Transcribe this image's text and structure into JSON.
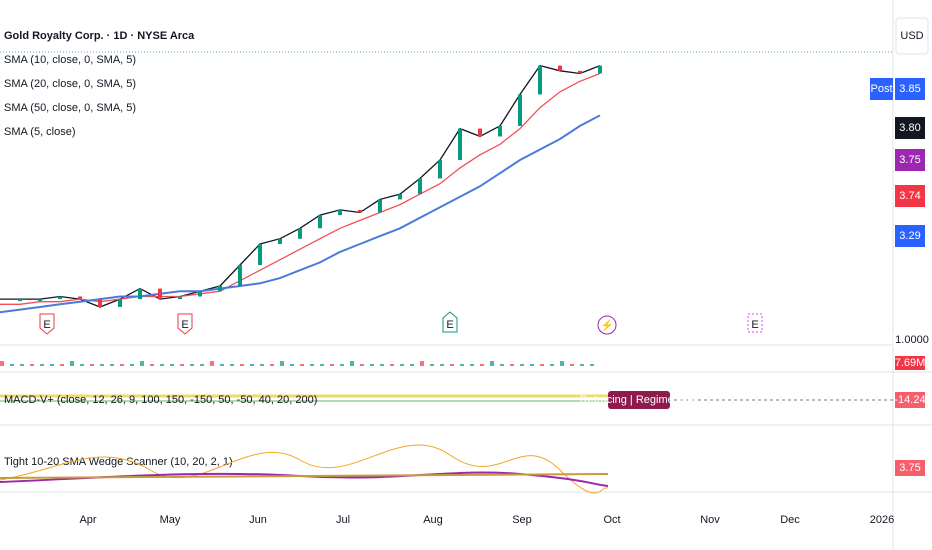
{
  "header": {
    "title": "Gold Royalty Corp. · 1D · NYSE Arca",
    "currency": "USD"
  },
  "legend": [
    "SMA (10, close, 0, SMA, 5)",
    "SMA (20, close, 0, SMA, 5)",
    "SMA (50, close, 0, SMA, 5)",
    "SMA (5, close)"
  ],
  "price_chart": {
    "ylim": [
      2.875,
      4.19
    ],
    "series": [
      {
        "name": "SMA (5, close)",
        "color": "#131722",
        "values": [
          3.05,
          3.05,
          3.05,
          3.06,
          3.05,
          3.02,
          3.05,
          3.09,
          3.05,
          3.06,
          3.08,
          3.1,
          3.18,
          3.26,
          3.28,
          3.32,
          3.37,
          3.39,
          3.38,
          3.43,
          3.45,
          3.51,
          3.58,
          3.7,
          3.67,
          3.71,
          3.83,
          3.94,
          3.92,
          3.91,
          3.94
        ]
      },
      {
        "name": "SMA (20, close, 0, SMA, 5)",
        "color": "#f0505a",
        "values": [
          3.03,
          3.03,
          3.04,
          3.04,
          3.05,
          3.04,
          3.05,
          3.06,
          3.06,
          3.06,
          3.07,
          3.08,
          3.12,
          3.16,
          3.2,
          3.24,
          3.28,
          3.32,
          3.35,
          3.38,
          3.41,
          3.45,
          3.49,
          3.55,
          3.6,
          3.64,
          3.7,
          3.78,
          3.84,
          3.88,
          3.91
        ]
      },
      {
        "name": "SMA (50, close, 0, SMA, 5)",
        "color": "#4a7bdc",
        "values": [
          3.0,
          3.01,
          3.02,
          3.03,
          3.04,
          3.05,
          3.06,
          3.06,
          3.07,
          3.08,
          3.08,
          3.09,
          3.1,
          3.11,
          3.13,
          3.16,
          3.19,
          3.23,
          3.26,
          3.29,
          3.32,
          3.36,
          3.4,
          3.44,
          3.48,
          3.53,
          3.58,
          3.62,
          3.66,
          3.71,
          3.75
        ]
      }
    ]
  },
  "price_labels": [
    {
      "text": "Post",
      "color": "#2962ff"
    },
    {
      "text": "3.85",
      "color": "#2962ff"
    },
    {
      "text": "3.80",
      "color": "#131722"
    },
    {
      "text": "3.75",
      "color": "#9c27b0"
    },
    {
      "text": "3.74",
      "color": "#f23645"
    },
    {
      "text": "3.29",
      "color": "#2962ff"
    }
  ],
  "volume_pane": {
    "scale": "1.0000",
    "label": "7.69M"
  },
  "macd_pane": {
    "title": "MACD-V+ (close, 12, 26, 9, 100, 150, -150, 50, -50, 40, 20, 200)",
    "badge": "Retracing | Regime: Bull",
    "label": "-14.24"
  },
  "scanner_pane": {
    "title": "Tight 10-20 SMA Wedge Scanner (10, 20, 2, 1)",
    "label": "3.75"
  },
  "time_axis": [
    "Apr",
    "May",
    "Jun",
    "Jul",
    "Aug",
    "Sep",
    "Oct",
    "Nov",
    "Dec",
    "2026"
  ]
}
